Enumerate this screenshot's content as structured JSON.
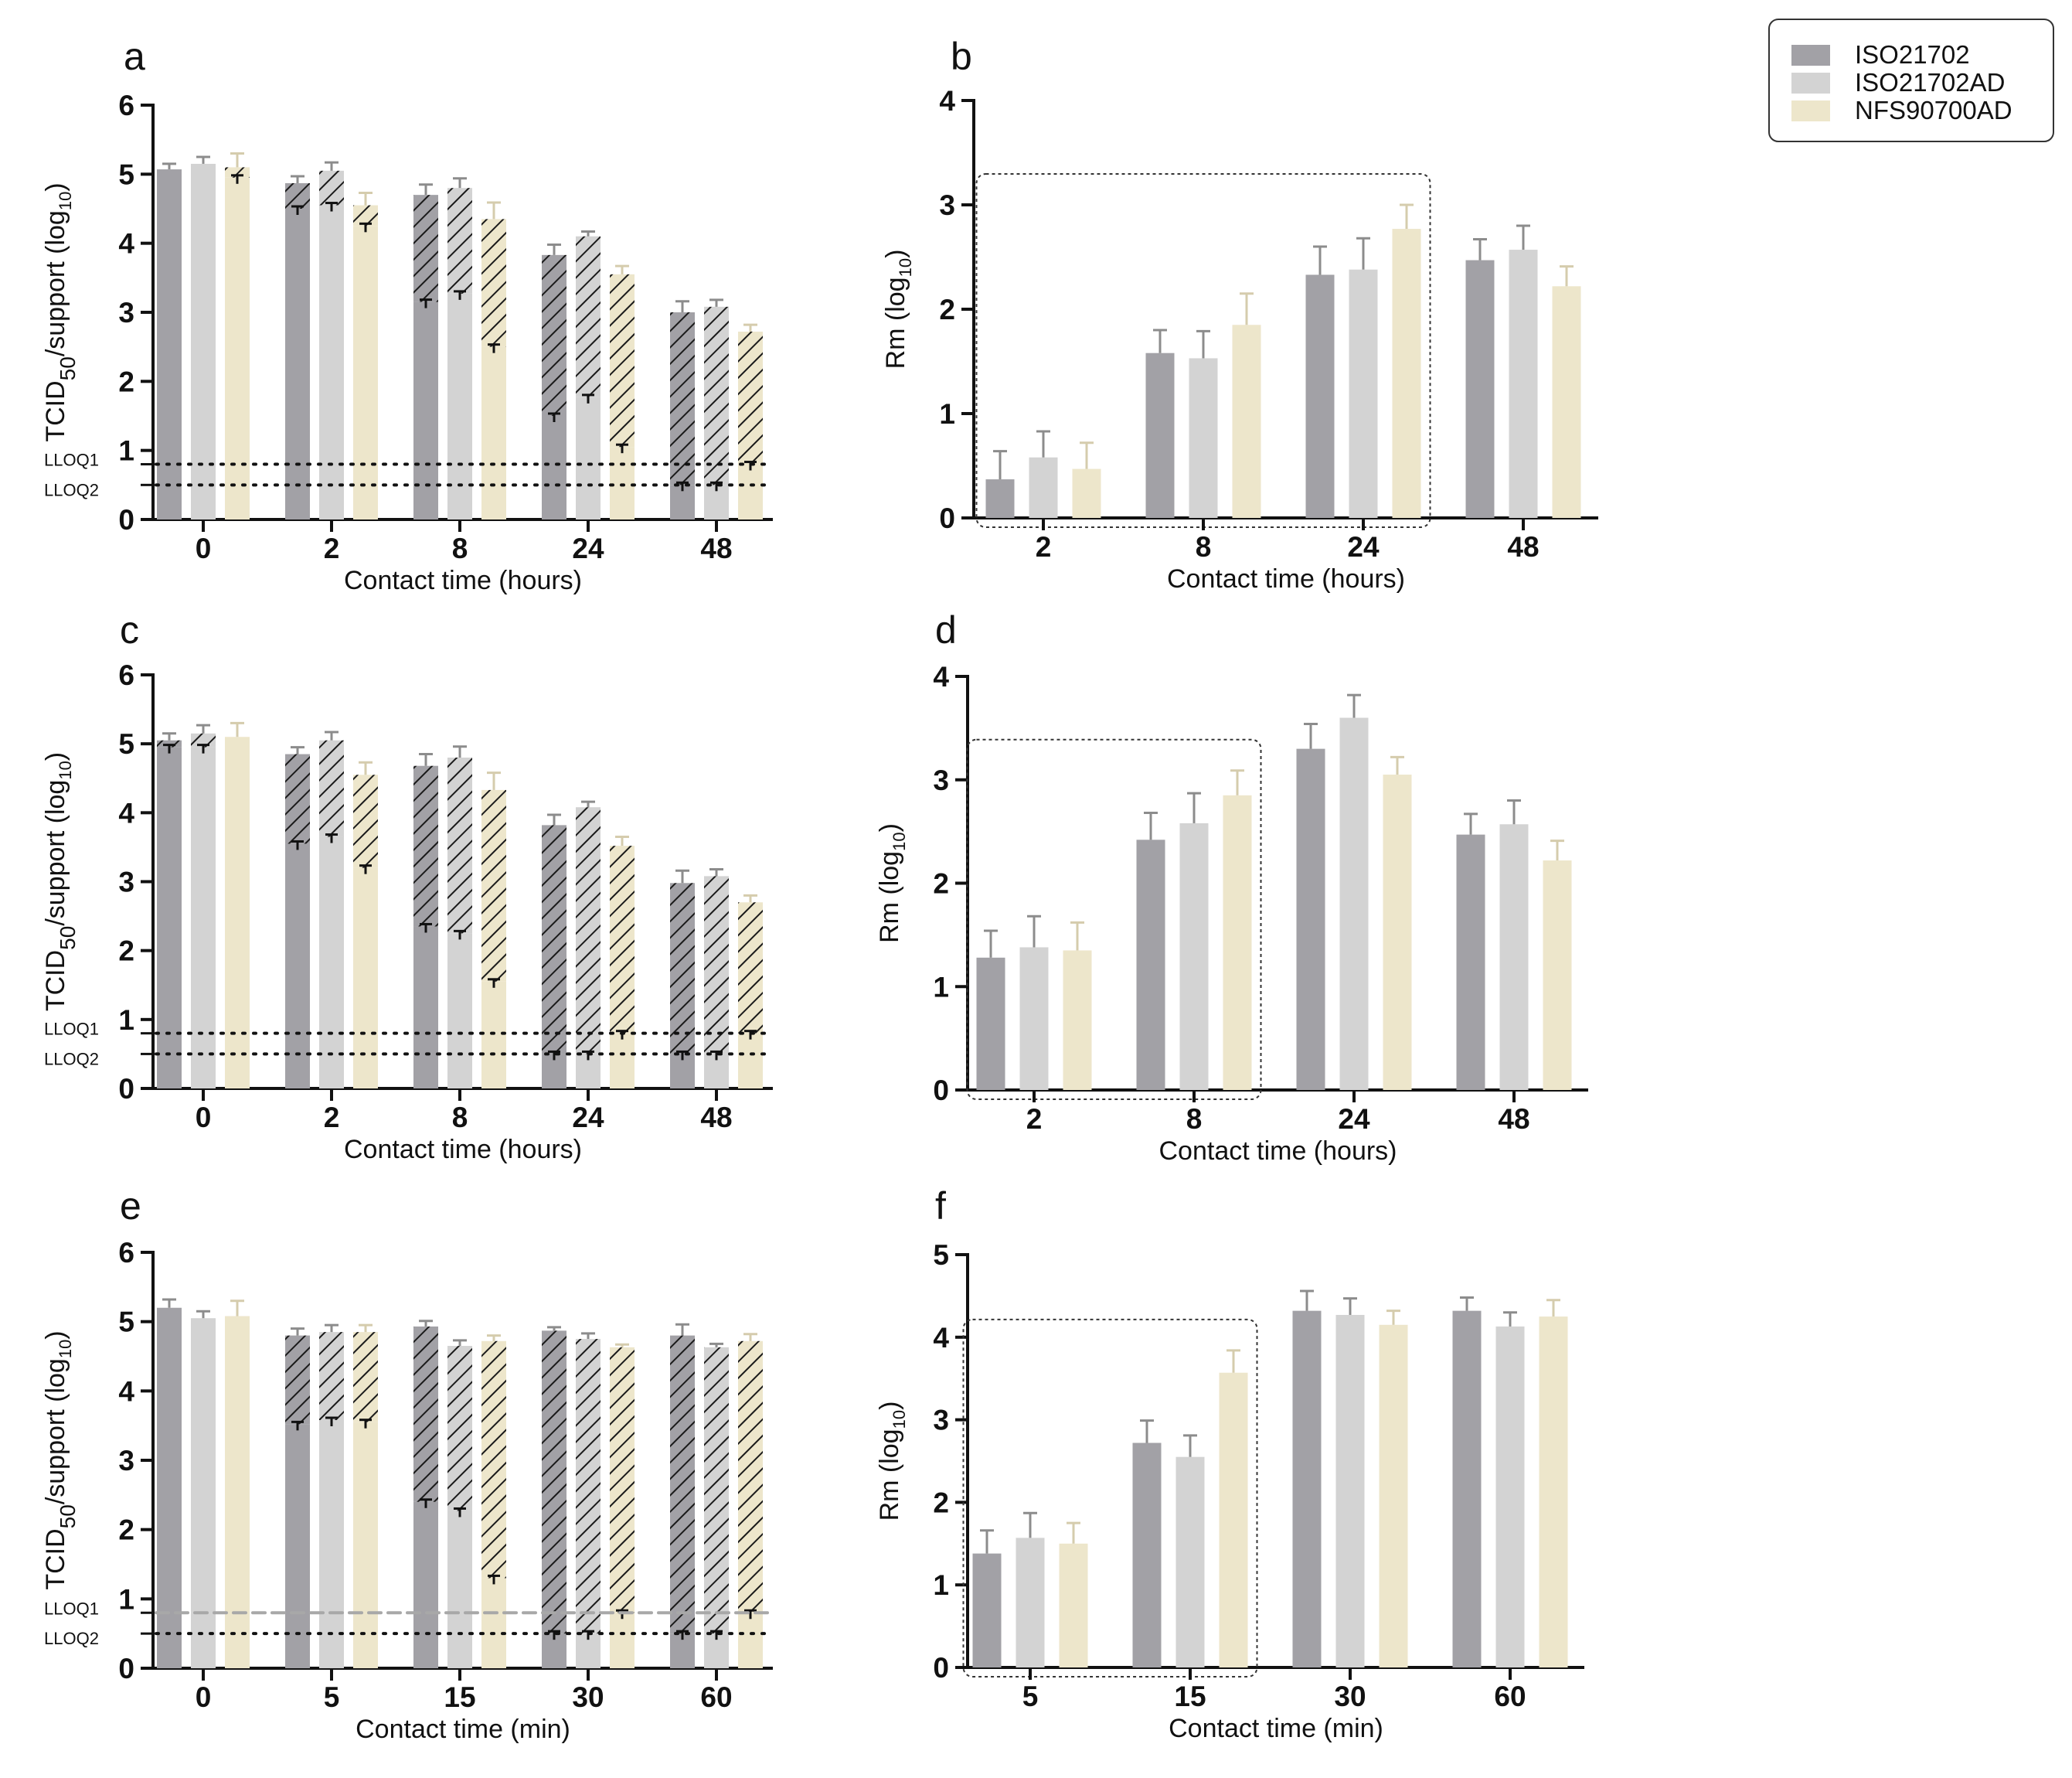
{
  "colors": {
    "ISO21702": "#a2a1a6",
    "ISO21702AD": "#d3d3d3",
    "NFS90700AD": "#ede6cb",
    "axis": "#111111",
    "error": "#8c8c8c",
    "error_nfs": "#d5ccad",
    "lloq_dash": "#a8a8a8"
  },
  "legend": {
    "items": [
      {
        "label": "ISO21702"
      },
      {
        "label": "ISO21702AD"
      },
      {
        "label": "NFS90700AD"
      }
    ]
  },
  "chart_data": [
    {
      "panel": "a",
      "type": "bar",
      "ylabel_main": "TCID",
      "ylabel_sub": "50",
      "ylabel_rest": "/support (log",
      "ylabel_sub2": "10",
      "ylabel_end": ")",
      "xlabel": "Contact time (hours)",
      "categories": [
        "0",
        "2",
        "8",
        "24",
        "48"
      ],
      "ylim": [
        0,
        6
      ],
      "yticks": [
        "0",
        "1",
        "2",
        "3",
        "4",
        "5",
        "6"
      ],
      "lloq": [
        {
          "label": "LLOQ1",
          "value": 0.8,
          "style": "dotted"
        },
        {
          "label": "LLOQ2",
          "value": 0.5,
          "style": "dotted"
        }
      ],
      "series": [
        {
          "name": "ISO21702",
          "values": [
            5.07,
            4.87,
            4.7,
            3.83,
            3.0
          ],
          "err": [
            0.08,
            0.1,
            0.15,
            0.15,
            0.16
          ],
          "solid": [
            5.07,
            4.5,
            3.15,
            1.5,
            0.5
          ]
        },
        {
          "name": "ISO21702AD",
          "values": [
            5.15,
            5.05,
            4.8,
            4.1,
            3.08
          ],
          "err": [
            0.1,
            0.12,
            0.14,
            0.07,
            0.1
          ],
          "solid": [
            5.15,
            4.55,
            3.27,
            1.77,
            0.5
          ]
        },
        {
          "name": "NFS90700AD",
          "values": [
            5.1,
            4.55,
            4.35,
            3.55,
            2.72
          ],
          "err": [
            0.2,
            0.18,
            0.24,
            0.12,
            0.1
          ],
          "solid": [
            4.95,
            4.25,
            2.5,
            1.05,
            0.8
          ]
        }
      ]
    },
    {
      "panel": "b",
      "type": "bar",
      "ylabel": "Rm (log",
      "ylabel_sub": "10",
      "ylabel_end": ")",
      "xlabel": "Contact time (hours)",
      "categories": [
        "2",
        "8",
        "24",
        "48"
      ],
      "ylim": [
        0,
        4
      ],
      "yticks": [
        "0",
        "1",
        "2",
        "3",
        "4"
      ],
      "highlight_groups": [
        0,
        2
      ],
      "series": [
        {
          "name": "ISO21702",
          "values": [
            0.37,
            1.58,
            2.33,
            2.47
          ],
          "err": [
            0.27,
            0.22,
            0.27,
            0.2
          ]
        },
        {
          "name": "ISO21702AD",
          "values": [
            0.58,
            1.53,
            2.38,
            2.57
          ],
          "err": [
            0.25,
            0.26,
            0.3,
            0.23
          ]
        },
        {
          "name": "NFS90700AD",
          "values": [
            0.47,
            1.85,
            2.77,
            2.22
          ],
          "err": [
            0.25,
            0.3,
            0.23,
            0.19
          ]
        }
      ]
    },
    {
      "panel": "c",
      "type": "bar",
      "ylabel_main": "TCID",
      "ylabel_sub": "50",
      "ylabel_rest": "/support (log",
      "ylabel_sub2": "10",
      "ylabel_end": ")",
      "xlabel": "Contact time (hours)",
      "categories": [
        "0",
        "2",
        "8",
        "24",
        "48"
      ],
      "ylim": [
        0,
        6
      ],
      "yticks": [
        "0",
        "1",
        "2",
        "3",
        "4",
        "5",
        "6"
      ],
      "lloq": [
        {
          "label": "LLOQ1",
          "value": 0.8,
          "style": "dotted"
        },
        {
          "label": "LLOQ2",
          "value": 0.5,
          "style": "dotted"
        }
      ],
      "series": [
        {
          "name": "ISO21702",
          "values": [
            5.05,
            4.85,
            4.68,
            3.82,
            2.98
          ],
          "err": [
            0.1,
            0.1,
            0.17,
            0.15,
            0.18
          ],
          "solid": [
            4.95,
            3.55,
            2.35,
            0.5,
            0.5
          ]
        },
        {
          "name": "ISO21702AD",
          "values": [
            5.15,
            5.05,
            4.8,
            4.08,
            3.08
          ],
          "err": [
            0.12,
            0.12,
            0.16,
            0.08,
            0.1
          ],
          "solid": [
            4.95,
            3.65,
            2.25,
            0.5,
            0.5
          ]
        },
        {
          "name": "NFS90700AD",
          "values": [
            5.1,
            4.55,
            4.33,
            3.52,
            2.7
          ],
          "err": [
            0.2,
            0.18,
            0.25,
            0.13,
            0.1
          ],
          "solid": [
            5.1,
            3.2,
            1.55,
            0.8,
            0.8
          ]
        }
      ]
    },
    {
      "panel": "d",
      "type": "bar",
      "ylabel": "Rm (log",
      "ylabel_sub": "10",
      "ylabel_end": ")",
      "xlabel": "Contact time (hours)",
      "categories": [
        "2",
        "8",
        "24",
        "48"
      ],
      "ylim": [
        0,
        4
      ],
      "yticks": [
        "0",
        "1",
        "2",
        "3",
        "4"
      ],
      "highlight_groups": [
        0,
        1
      ],
      "series": [
        {
          "name": "ISO21702",
          "values": [
            1.28,
            2.42,
            3.3,
            2.47
          ],
          "err": [
            0.26,
            0.26,
            0.24,
            0.2
          ]
        },
        {
          "name": "ISO21702AD",
          "values": [
            1.38,
            2.58,
            3.6,
            2.57
          ],
          "err": [
            0.3,
            0.29,
            0.22,
            0.23
          ]
        },
        {
          "name": "NFS90700AD",
          "values": [
            1.35,
            2.85,
            3.05,
            2.22
          ],
          "err": [
            0.27,
            0.24,
            0.17,
            0.19
          ]
        }
      ]
    },
    {
      "panel": "e",
      "type": "bar",
      "ylabel_main": "TCID",
      "ylabel_sub": "50",
      "ylabel_rest": "/support (log",
      "ylabel_sub2": "10",
      "ylabel_end": ")",
      "xlabel": "Contact time (min)",
      "categories": [
        "0",
        "5",
        "15",
        "30",
        "60"
      ],
      "ylim": [
        0,
        6
      ],
      "yticks": [
        "0",
        "1",
        "2",
        "3",
        "4",
        "5",
        "6"
      ],
      "lloq": [
        {
          "label": "LLOQ1",
          "value": 0.8,
          "style": "dashed"
        },
        {
          "label": "LLOQ2",
          "value": 0.5,
          "style": "dotted"
        }
      ],
      "series": [
        {
          "name": "ISO21702",
          "values": [
            5.2,
            4.8,
            4.93,
            4.87,
            4.8
          ],
          "err": [
            0.12,
            0.1,
            0.08,
            0.05,
            0.16
          ],
          "solid": [
            5.2,
            3.52,
            2.4,
            0.5,
            0.5
          ]
        },
        {
          "name": "ISO21702AD",
          "values": [
            5.05,
            4.85,
            4.65,
            4.75,
            4.63
          ],
          "err": [
            0.1,
            0.1,
            0.08,
            0.08,
            0.05
          ],
          "solid": [
            5.05,
            3.58,
            2.27,
            0.5,
            0.5
          ]
        },
        {
          "name": "NFS90700AD",
          "values": [
            5.08,
            4.85,
            4.72,
            4.63,
            4.72
          ],
          "err": [
            0.22,
            0.1,
            0.08,
            0.04,
            0.1
          ],
          "solid": [
            5.08,
            3.55,
            1.3,
            0.8,
            0.8
          ]
        }
      ]
    },
    {
      "panel": "f",
      "type": "bar",
      "ylabel": "Rm (log",
      "ylabel_sub": "10",
      "ylabel_end": ")",
      "xlabel": "Contact time (min)",
      "categories": [
        "5",
        "15",
        "30",
        "60"
      ],
      "ylim": [
        0,
        5
      ],
      "yticks": [
        "0",
        "1",
        "2",
        "3",
        "4",
        "5"
      ],
      "highlight_groups": [
        0,
        1
      ],
      "series": [
        {
          "name": "ISO21702",
          "values": [
            1.38,
            2.72,
            4.32,
            4.32
          ],
          "err": [
            0.28,
            0.27,
            0.24,
            0.16
          ]
        },
        {
          "name": "ISO21702AD",
          "values": [
            1.57,
            2.55,
            4.27,
            4.13
          ],
          "err": [
            0.3,
            0.26,
            0.2,
            0.17
          ]
        },
        {
          "name": "NFS90700AD",
          "values": [
            1.5,
            3.57,
            4.15,
            4.25
          ],
          "err": [
            0.25,
            0.27,
            0.17,
            0.2
          ]
        }
      ]
    }
  ]
}
